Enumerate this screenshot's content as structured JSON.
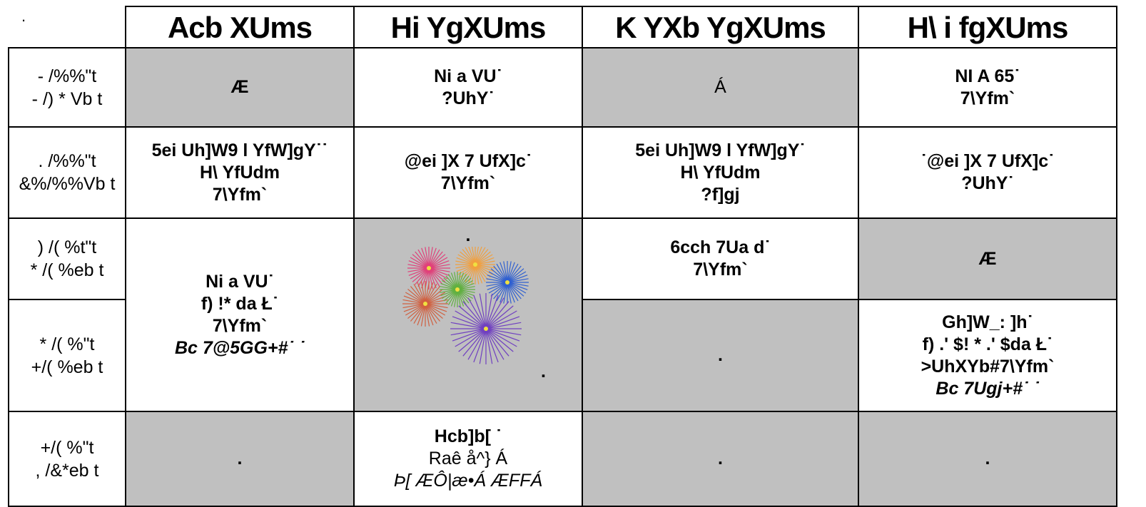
{
  "corner": ".",
  "days": [
    "Acb XUms",
    "Hi YgXUms",
    "K YXb YgXUms",
    "H\\ i fgXUms"
  ],
  "rows": [
    {
      "time": [
        "- /%%\"t",
        "- /) * Vb t"
      ],
      "cells": [
        [
          "Æ"
        ],
        [
          "Ni a VU˙",
          "?UhY˙"
        ],
        [
          "Á"
        ],
        [
          "NI A 65˙",
          "7\\Yfm`"
        ]
      ]
    },
    {
      "time": [
        ". /%%\"t",
        "&%/%%Vb t"
      ],
      "cells": [
        [
          "5ei Uh]W9 l YfW]gY˙˙",
          "H\\ YfUdm",
          "7\\Yfm`"
        ],
        [
          "@ei ]X 7 UfX]c˙",
          "7\\Yfm`"
        ],
        [
          "5ei Uh]W9 l YfW]gY˙",
          "H\\ YfUdm",
          "?f]gj"
        ],
        [
          "˙@ei ]X 7 UfX]c˙",
          "?UhY˙"
        ]
      ]
    },
    {
      "time": [
        ") /( %t\"t",
        "* /( %eb t"
      ],
      "cells": [
        [
          "Ni a VU˙",
          "f) !* da Ł˙",
          "7\\Yfm`",
          "Bc 7@5GG+#˙ ˙"
        ],
        [
          ".",
          "."
        ],
        [
          "6cch 7Ua d˙",
          "7\\Yfm`"
        ],
        [
          "Æ"
        ]
      ]
    },
    {
      "time": [
        "* /( %\"t",
        "+/( %eb t"
      ],
      "cells": [
        [
          "."
        ],
        [
          "Gh]W_: ]h˙",
          "f) .' $! * .' $da Ł˙",
          ">UhXYb#7\\Yfm`",
          "Bc 7Ugj+#˙ ˙"
        ]
      ]
    },
    {
      "time": [
        "+/( %\"t",
        ", /&*eb t"
      ],
      "cells": [
        [
          "."
        ],
        [
          "Hcb]b[ ˙",
          "Raê å^} Á",
          "Þ[ ÆÔ|æ•Á ÆFFÁ"
        ],
        [
          "."
        ],
        [
          "."
        ]
      ]
    }
  ]
}
